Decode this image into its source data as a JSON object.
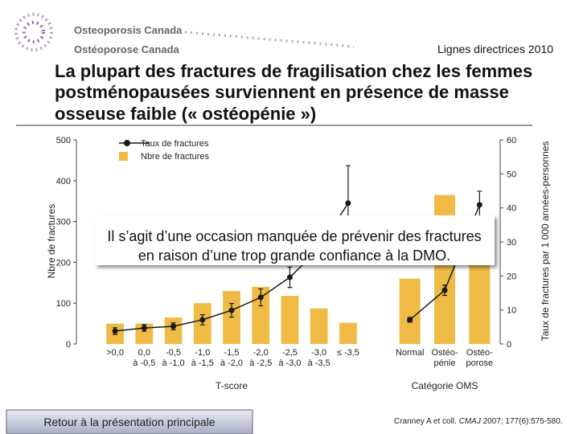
{
  "header": {
    "org_en": "Osteoporosis Canada",
    "org_fr": "Ostéoporose Canada",
    "guideline": "Lignes directrices 2010",
    "title": [
      "La plupart des fractures de fragilisation chez les femmes",
      "postménopausées surviennent en présence de masse",
      "osseuse faible (« ostéopénie »)"
    ]
  },
  "note": [
    "Il s’agit d’une occasion manquée de prévenir des fractures",
    "en raison d’une trop grande confiance à la DMO."
  ],
  "button": "Retour à la présentation principale",
  "citation": [
    "Cranney A et coll. ",
    "CMAJ",
    " 2007; 177(6):575-580."
  ],
  "chart_data": [
    {
      "type": "bar-line",
      "xlabel": "T-score",
      "ylabel": "Nbre de fractures",
      "y2label": "Taux de fractures par 1 000 années-personnes",
      "categories": [
        [
          ">0,0"
        ],
        [
          "0,0",
          "à -0,5"
        ],
        [
          "-0,5",
          "à -1,0"
        ],
        [
          "-1,0",
          "à -1,5"
        ],
        [
          "-1,5",
          "à -2,0"
        ],
        [
          "-2,0",
          "à -2,5"
        ],
        [
          "-2,5",
          "à -3,0"
        ],
        [
          "-3,0",
          "à -3,5"
        ],
        [
          "≤ -3,5"
        ]
      ],
      "ylim": [
        0,
        500
      ],
      "yticks": [
        0,
        100,
        200,
        300,
        400,
        500
      ],
      "y2lim": [
        0,
        60
      ],
      "y2ticks": [
        0,
        10,
        20,
        30,
        40,
        50,
        60
      ],
      "series": [
        {
          "name": "Taux de fractures",
          "kind": "line",
          "axis": "y2",
          "color": "#1a1a1a",
          "values": [
            3.8,
            4.7,
            5.2,
            7.1,
            9.9,
            13.7,
            19.6,
            28,
            41.4
          ],
          "errors": [
            1,
            1,
            1,
            1.5,
            2,
            2.5,
            3,
            4,
            11
          ]
        },
        {
          "name": "Nbre de fractures",
          "kind": "bar",
          "color": "#f0bb45",
          "values": [
            50,
            50,
            65,
            100,
            130,
            140,
            118,
            87,
            52
          ]
        }
      ]
    },
    {
      "type": "bar-line",
      "xlabel": "Catégorie OMS",
      "categories": [
        [
          "Normal"
        ],
        [
          "Ostéo-",
          "pénie"
        ],
        [
          "Ostéo-",
          "porose"
        ]
      ],
      "ylim": [
        0,
        500
      ],
      "y2lim": [
        0,
        60
      ],
      "series": [
        {
          "kind": "line",
          "axis": "y2",
          "color": "#1a1a1a",
          "values": [
            7.1,
            15.8,
            40.9
          ],
          "errors": [
            0.7,
            1.5,
            4
          ]
        },
        {
          "kind": "bar",
          "color": "#f0bb45",
          "values": [
            160,
            365,
            290
          ]
        }
      ]
    }
  ]
}
